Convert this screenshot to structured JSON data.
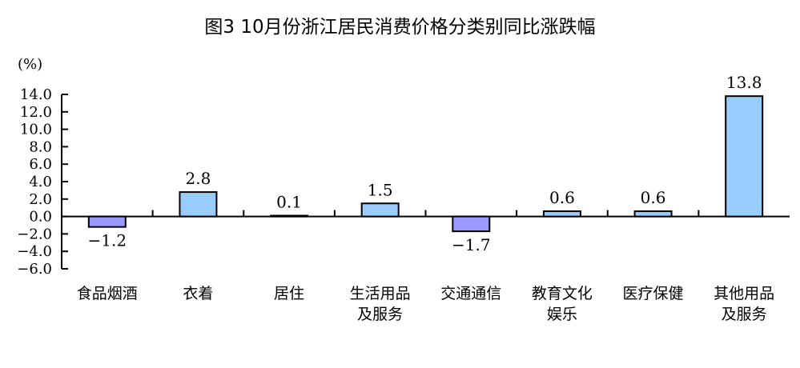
{
  "chart_data": {
    "type": "bar",
    "title": "图3  10月份浙江居民消费价格分类别同比涨跌幅",
    "ylabel": "(%)",
    "categories": [
      [
        "食品烟酒"
      ],
      [
        "衣着"
      ],
      [
        "居住"
      ],
      [
        "生活用品",
        "及服务"
      ],
      [
        "交通通信"
      ],
      [
        "教育文化",
        "娱乐"
      ],
      [
        "医疗保健"
      ],
      [
        "其他用品",
        "及服务"
      ]
    ],
    "values": [
      -1.2,
      2.8,
      0.1,
      1.5,
      -1.7,
      0.6,
      0.6,
      13.8
    ],
    "data_labels": [
      "-1.2",
      "2.8",
      "0.1",
      "1.5",
      "-1.7",
      "0.6",
      "0.6",
      "13.8"
    ],
    "ylim": [
      -6,
      14
    ],
    "yticks": [
      "14.0",
      "12.0",
      "10.0",
      "8.0",
      "6.0",
      "4.0",
      "2.0",
      "0.0",
      "-2.0",
      "-4.0",
      "-6.0"
    ],
    "grid": false,
    "colors": {
      "positive": "#99CCFF",
      "negative": "#9999FF",
      "border": "#000000"
    }
  }
}
